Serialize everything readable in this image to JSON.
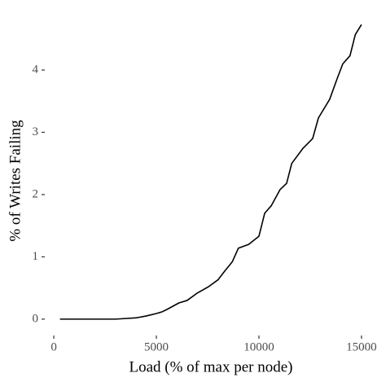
{
  "chart_data": {
    "type": "line",
    "x_label": "Load (% of max per node)",
    "y_label": "% of Writes Failing",
    "x": [
      300,
      1000,
      2000,
      3000,
      3500,
      4000,
      4500,
      5000,
      5300,
      5600,
      6100,
      6500,
      7000,
      7540,
      8000,
      8330,
      8700,
      9000,
      9500,
      10000,
      10280,
      10600,
      11030,
      11350,
      11600,
      12140,
      12620,
      12900,
      13450,
      13800,
      14090,
      14440,
      14700,
      15000
    ],
    "series": [
      {
        "color": "#000000",
        "values": [
          0,
          0,
          0,
          0,
          0.01,
          0.02,
          0.05,
          0.09,
          0.12,
          0.17,
          0.26,
          0.3,
          0.42,
          0.52,
          0.63,
          0.77,
          0.92,
          1.14,
          1.2,
          1.33,
          1.7,
          1.82,
          2.08,
          2.18,
          2.5,
          2.74,
          2.9,
          3.23,
          3.53,
          3.85,
          4.1,
          4.23,
          4.57,
          4.73
        ]
      }
    ],
    "xlim": [
      -400,
      15600
    ],
    "ylim": [
      -0.25,
      4.85
    ],
    "xticks": [
      0,
      5000,
      10000,
      15000
    ],
    "yticks": [
      0,
      1,
      2,
      3,
      4
    ],
    "grid": false
  }
}
